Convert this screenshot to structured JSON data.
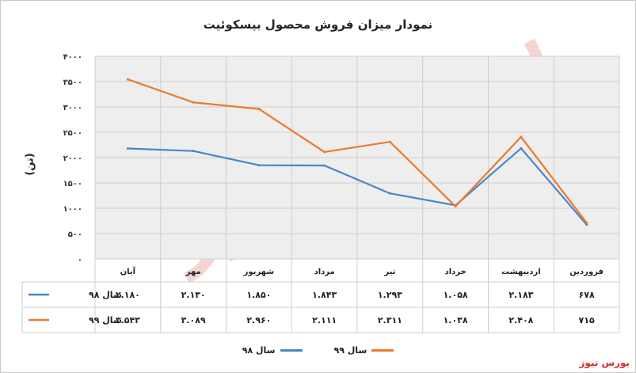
{
  "title": "نمودار میزان فروش محصول بیسکوئیت",
  "source_label": "بورس نیوز",
  "watermark": "بورس نیوز",
  "chart_data": {
    "type": "line",
    "title": "نمودار میزان فروش محصول بیسکوئیت",
    "ylabel": "(تن)",
    "xlabel": "",
    "ylim": [
      0,
      4000
    ],
    "yticks": [
      "۰",
      "۵۰۰",
      "۱۰۰۰",
      "۱۵۰۰",
      "۲۰۰۰",
      "۲۵۰۰",
      "۳۰۰۰",
      "۳۵۰۰",
      "۴۰۰۰"
    ],
    "ytick_values": [
      0,
      500,
      1000,
      1500,
      2000,
      2500,
      3000,
      3500,
      4000
    ],
    "grid": true,
    "legend": "bottom",
    "categories": [
      "فروردین",
      "اردیبهشت",
      "خرداد",
      "تیر",
      "مرداد",
      "شهریور",
      "مهر",
      "آبان"
    ],
    "series": [
      {
        "name": "سال ۹۸",
        "color": "#4a86c8",
        "values": [
          678,
          2183,
          1058,
          1293,
          1843,
          1850,
          2130,
          2180
        ],
        "labels": [
          "۶۷۸",
          "۲.۱۸۳",
          "۱.۰۵۸",
          "۱.۲۹۳",
          "۱.۸۴۳",
          "۱.۸۵۰",
          "۲.۱۳۰",
          "۲.۱۸۰"
        ]
      },
      {
        "name": "سال ۹۹",
        "color": "#ec7a2c",
        "values": [
          715,
          2408,
          1038,
          2311,
          2111,
          2960,
          3089,
          3543
        ],
        "labels": [
          "۷۱۵",
          "۲.۴۰۸",
          "۱.۰۳۸",
          "۲.۳۱۱",
          "۲.۱۱۱",
          "۲.۹۶۰",
          "۳.۰۸۹",
          "۳.۵۴۳"
        ]
      }
    ]
  }
}
